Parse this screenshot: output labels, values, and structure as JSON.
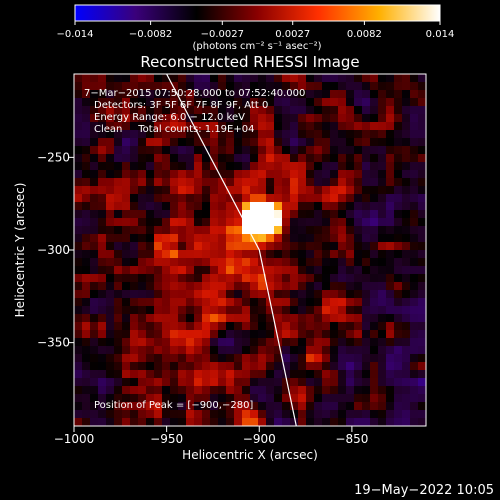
{
  "chart_data": {
    "type": "heatmap",
    "title": "Reconstructed RHESSI Image",
    "xlabel": "Heliocentric X (arcsec)",
    "ylabel": "Heliocentric Y (arcsec)",
    "xlim": [
      -1000,
      -810
    ],
    "ylim": [
      -395,
      -205
    ],
    "x_ticks": [
      -1000,
      -950,
      -900,
      -850
    ],
    "y_ticks": [
      -250,
      -300,
      -350
    ],
    "x_tick_labels": [
      "−1000",
      "−950",
      "−900",
      "−850"
    ],
    "y_tick_labels": [
      "−250",
      "−300",
      "−350"
    ],
    "colorbar": {
      "range": [
        -0.014,
        0.014
      ],
      "ticks": [
        -0.014,
        -0.0082,
        -0.0027,
        0.0027,
        0.0082,
        0.014
      ],
      "tick_labels": [
        "−0.014",
        "−0.0082",
        "−0.0027",
        "0.0027",
        "0.0082",
        "0.014"
      ],
      "unit_label": "(photons cm⁻² s⁻¹ asec⁻²)",
      "colors": [
        "#0000ff",
        "#3a007a",
        "#000000",
        "#8a0000",
        "#ff3000",
        "#ffb000",
        "#ffffff"
      ]
    },
    "annotations": [
      "7−Mar−2015 07:50:28.000 to 07:52:40.000",
      "Detectors: 3F 5F 6F 7F 8F 9F, Att 0",
      "Energy Range: 6.0 − 12.0 keV",
      "Clean     Total counts: 1.19E+04"
    ],
    "peak_label": "Position of Peak = [−900,−280]",
    "peak": {
      "x": -900,
      "y": -280,
      "value": 0.014
    },
    "limb_line": [
      [
        -950,
        -205
      ],
      [
        -900,
        -300
      ],
      [
        -880,
        -395
      ]
    ],
    "timestamp": "19−May−2022 10:05"
  }
}
